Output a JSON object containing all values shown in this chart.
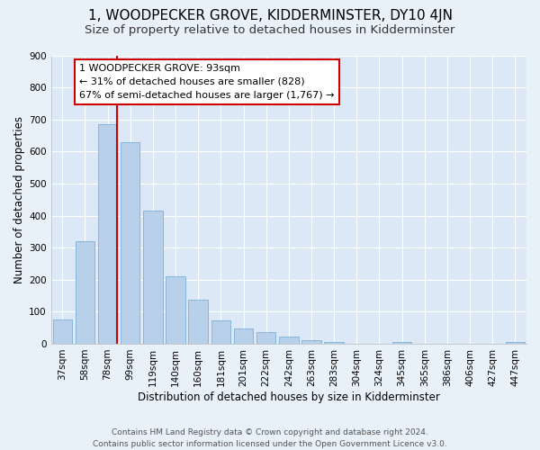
{
  "title": "1, WOODPECKER GROVE, KIDDERMINSTER, DY10 4JN",
  "subtitle": "Size of property relative to detached houses in Kidderminster",
  "xlabel": "Distribution of detached houses by size in Kidderminster",
  "ylabel": "Number of detached properties",
  "footer_line1": "Contains HM Land Registry data © Crown copyright and database right 2024.",
  "footer_line2": "Contains public sector information licensed under the Open Government Licence v3.0.",
  "categories": [
    "37sqm",
    "58sqm",
    "78sqm",
    "99sqm",
    "119sqm",
    "140sqm",
    "160sqm",
    "181sqm",
    "201sqm",
    "222sqm",
    "242sqm",
    "263sqm",
    "283sqm",
    "304sqm",
    "324sqm",
    "345sqm",
    "365sqm",
    "386sqm",
    "406sqm",
    "427sqm",
    "447sqm"
  ],
  "values": [
    75,
    320,
    685,
    630,
    415,
    210,
    137,
    72,
    48,
    35,
    22,
    10,
    5,
    0,
    0,
    5,
    0,
    0,
    0,
    0,
    5
  ],
  "bar_color": "#b8d0ea",
  "bar_edge_color": "#7aafd4",
  "vline_color": "#cc0000",
  "annotation_text_line1": "1 WOODPECKER GROVE: 93sqm",
  "annotation_text_line2": "← 31% of detached houses are smaller (828)",
  "annotation_text_line3": "67% of semi-detached houses are larger (1,767) →",
  "annotation_box_color": "#ffffff",
  "annotation_border_color": "#cc0000",
  "ylim": [
    0,
    900
  ],
  "yticks": [
    0,
    100,
    200,
    300,
    400,
    500,
    600,
    700,
    800,
    900
  ],
  "fig_bg_color": "#e8f0f8",
  "plot_bg_color": "#dce8f5",
  "grid_color": "#ffffff",
  "title_fontsize": 11,
  "subtitle_fontsize": 9.5,
  "ylabel_fontsize": 8.5,
  "xlabel_fontsize": 8.5,
  "tick_fontsize": 7.5,
  "annot_fontsize": 8,
  "footer_fontsize": 6.5
}
